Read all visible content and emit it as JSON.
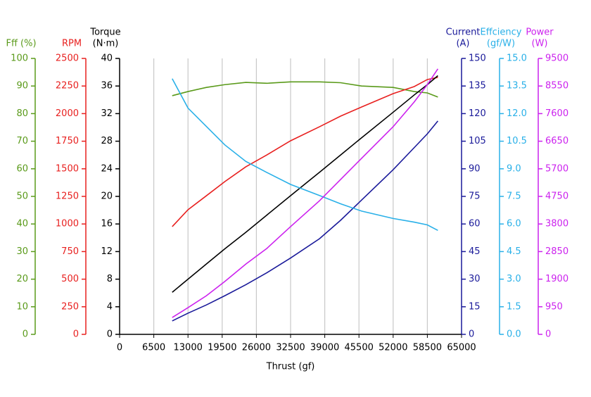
{
  "chart_data": {
    "type": "line",
    "xlabel": "Thrust (gf)",
    "xlim": [
      0,
      65000
    ],
    "xticks": [
      0,
      6500,
      13000,
      19500,
      26000,
      32500,
      39000,
      45500,
      52000,
      58500,
      65000
    ],
    "grid": true,
    "x": [
      10000,
      13000,
      16500,
      20000,
      24000,
      28000,
      32500,
      38000,
      42000,
      46000,
      52000,
      56000,
      58500,
      60500
    ],
    "axes": [
      {
        "label": [
          "Fff (%)"
        ],
        "color": "#5a9a1a",
        "lim": [
          0,
          100
        ],
        "ticks": [
          0,
          10,
          20,
          30,
          40,
          50,
          60,
          70,
          80,
          90,
          100
        ]
      },
      {
        "label": [
          "RPM"
        ],
        "color": "#e8201f",
        "lim": [
          0,
          2500
        ],
        "ticks": [
          0,
          250,
          500,
          750,
          1000,
          1250,
          1500,
          1750,
          2000,
          2250,
          2500
        ]
      },
      {
        "label": [
          "Torque",
          "(N·m)"
        ],
        "color": "#000000",
        "lim": [
          0,
          40
        ],
        "ticks": [
          0,
          4,
          8,
          12,
          16,
          20,
          24,
          28,
          32,
          36,
          40
        ]
      },
      {
        "label": [
          "Current",
          "(A)"
        ],
        "color": "#1a1a9a",
        "lim": [
          0,
          150
        ],
        "ticks": [
          0,
          15,
          30,
          45,
          60,
          75,
          90,
          105,
          120,
          135,
          150
        ]
      },
      {
        "label": [
          "Effciency",
          "(gf/W)"
        ],
        "color": "#29b0e8",
        "lim": [
          0,
          15
        ],
        "ticks": [
          {
            "value": 0,
            "label": "0.0"
          },
          1.5,
          {
            "value": 3,
            "label": "3.0"
          },
          4.5,
          {
            "value": 6,
            "label": "6.0"
          },
          7.5,
          {
            "value": 9,
            "label": "9.0"
          },
          10.5,
          {
            "value": 12,
            "label": "12.0"
          },
          13.5,
          {
            "value": 15,
            "label": "15.0"
          }
        ]
      },
      {
        "label": [
          "Power",
          "(W)"
        ],
        "color": "#cc22ee",
        "lim": [
          0,
          9500
        ],
        "ticks": [
          0,
          950,
          1900,
          2850,
          3800,
          4750,
          5700,
          6650,
          7600,
          8550,
          9500
        ]
      }
    ],
    "series": [
      {
        "axis": 0,
        "color": "#5a9a1a",
        "values": [
          86.5,
          88,
          89.5,
          90.5,
          91.3,
          91,
          91.5,
          91.5,
          91.2,
          90,
          89.5,
          88,
          87.5,
          86
        ]
      },
      {
        "axis": 1,
        "color": "#e8201f",
        "values": [
          976,
          1129,
          1256,
          1384,
          1518,
          1626,
          1754,
          1881,
          1977,
          2060,
          2181,
          2245,
          2309,
          2328
        ]
      },
      {
        "axis": 2,
        "color": "#000000",
        "values": [
          6.1,
          8.0,
          10.2,
          12.4,
          14.8,
          17.3,
          20.1,
          23.5,
          26.0,
          28.5,
          32.2,
          34.7,
          36.2,
          37.5
        ]
      },
      {
        "axis": 3,
        "color": "#1a1a9a",
        "values": [
          7.3,
          11.5,
          16,
          21,
          27,
          33.5,
          41.5,
          52,
          62,
          73,
          89.5,
          101.5,
          109,
          116
        ]
      },
      {
        "axis": 4,
        "color": "#29b0e8",
        "values": [
          13.9,
          12.3,
          11.3,
          10.3,
          9.4,
          8.8,
          8.15,
          7.55,
          7.1,
          6.7,
          6.3,
          6.1,
          5.95,
          5.65
        ]
      },
      {
        "axis": 5,
        "color": "#cc22ee",
        "values": [
          580,
          920,
          1330,
          1820,
          2420,
          2960,
          3710,
          4600,
          5330,
          6060,
          7150,
          8000,
          8600,
          9140
        ]
      }
    ]
  }
}
